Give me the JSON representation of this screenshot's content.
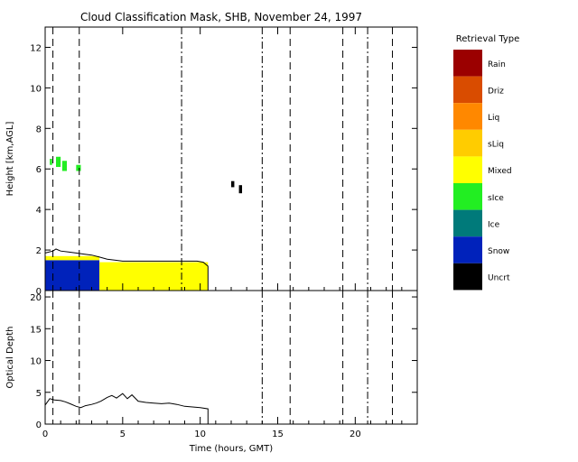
{
  "chart_data": [
    {
      "type": "area",
      "title": "Cloud Classification Mask, SHB, November 24, 1997",
      "ylabel": "Height [km,AGL]",
      "xlim": [
        0,
        24
      ],
      "ylim": [
        0,
        13
      ],
      "yticks": [
        0,
        2,
        4,
        6,
        8,
        10,
        12
      ],
      "legend": {
        "title": "Retrieval Type",
        "placement": "right",
        "entries": [
          {
            "label": "Rain",
            "color": "#9b0000"
          },
          {
            "label": "Driz",
            "color": "#d94c00"
          },
          {
            "label": "Liq",
            "color": "#ff8800"
          },
          {
            "label": "sLiq",
            "color": "#ffcc00"
          },
          {
            "label": "Mixed",
            "color": "#ffff00"
          },
          {
            "label": "sIce",
            "color": "#22ee22"
          },
          {
            "label": "Ice",
            "color": "#007a7a"
          },
          {
            "label": "Snow",
            "color": "#0022bb"
          },
          {
            "label": "Uncrt",
            "color": "#000000"
          }
        ]
      },
      "cloud_top_km": {
        "x": [
          0.0,
          0.5,
          0.7,
          1.0,
          1.5,
          2.0,
          2.5,
          3.0,
          3.5,
          4.0,
          5.0,
          6.0,
          7.0,
          8.0,
          9.0,
          9.8,
          10.2,
          10.5
        ],
        "y": [
          1.85,
          1.95,
          2.05,
          1.95,
          1.9,
          1.85,
          1.8,
          1.75,
          1.65,
          1.55,
          1.45,
          1.45,
          1.45,
          1.45,
          1.45,
          1.45,
          1.4,
          1.2
        ]
      },
      "regions": [
        {
          "type": "Snow",
          "x": [
            0.0,
            3.5
          ],
          "y": [
            0.0,
            1.5
          ]
        },
        {
          "type": "Mixed",
          "x": [
            0.0,
            3.5
          ],
          "y": [
            1.5,
            1.7
          ]
        },
        {
          "type": "Mixed",
          "x": [
            3.5,
            10.5
          ],
          "y": [
            0.0,
            1.4
          ]
        },
        {
          "type": "sIce",
          "x": [
            0.3,
            0.45
          ],
          "y": [
            6.2,
            6.5
          ]
        },
        {
          "type": "sIce",
          "x": [
            0.7,
            1.0
          ],
          "y": [
            6.1,
            6.6
          ]
        },
        {
          "type": "sIce",
          "x": [
            1.1,
            1.4
          ],
          "y": [
            5.9,
            6.4
          ]
        },
        {
          "type": "sIce",
          "x": [
            2.0,
            2.3
          ],
          "y": [
            5.9,
            6.2
          ]
        },
        {
          "type": "Uncrt",
          "x": [
            12.0,
            12.2
          ],
          "y": [
            5.1,
            5.4
          ]
        },
        {
          "type": "Uncrt",
          "x": [
            12.5,
            12.7
          ],
          "y": [
            4.8,
            5.2
          ]
        }
      ],
      "vertical_lines": [
        {
          "x": 0.5,
          "style": "dashed"
        },
        {
          "x": 2.2,
          "style": "dashed"
        },
        {
          "x": 8.8,
          "style": "dashdot"
        },
        {
          "x": 14.0,
          "style": "dashdot"
        },
        {
          "x": 15.8,
          "style": "dashed"
        },
        {
          "x": 19.2,
          "style": "dashed"
        },
        {
          "x": 20.8,
          "style": "dashdot"
        },
        {
          "x": 22.4,
          "style": "dashed"
        }
      ]
    },
    {
      "type": "line",
      "title": "",
      "xlabel": "Time (hours, GMT)",
      "ylabel": "Optical Depth",
      "xlim": [
        0,
        24
      ],
      "ylim": [
        0,
        21
      ],
      "xticks": [
        0,
        5,
        10,
        15,
        20
      ],
      "yticks": [
        0,
        5,
        10,
        15,
        20
      ],
      "series": [
        {
          "x": [
            0.0,
            0.3,
            0.6,
            1.0,
            1.3,
            1.6,
            2.0,
            2.3,
            2.6,
            3.0,
            3.3,
            3.6,
            4.0,
            4.3,
            4.6,
            5.0,
            5.3,
            5.6,
            6.0,
            6.5,
            7.0,
            7.5,
            8.0,
            8.5,
            9.0,
            9.5,
            10.0,
            10.5
          ],
          "y": [
            3.0,
            4.0,
            3.8,
            3.7,
            3.5,
            3.2,
            2.8,
            2.6,
            2.9,
            3.1,
            3.3,
            3.6,
            4.2,
            4.5,
            4.1,
            4.8,
            4.0,
            4.6,
            3.6,
            3.4,
            3.3,
            3.2,
            3.3,
            3.1,
            2.8,
            2.7,
            2.6,
            2.4
          ]
        }
      ],
      "vertical_lines": [
        {
          "x": 0.5,
          "style": "dashed"
        },
        {
          "x": 2.2,
          "style": "dashed"
        },
        {
          "x": 14.0,
          "style": "dashdot"
        },
        {
          "x": 15.8,
          "style": "dashed"
        },
        {
          "x": 19.2,
          "style": "dashed"
        },
        {
          "x": 20.8,
          "style": "dashdot"
        },
        {
          "x": 22.4,
          "style": "dashed"
        }
      ]
    }
  ]
}
